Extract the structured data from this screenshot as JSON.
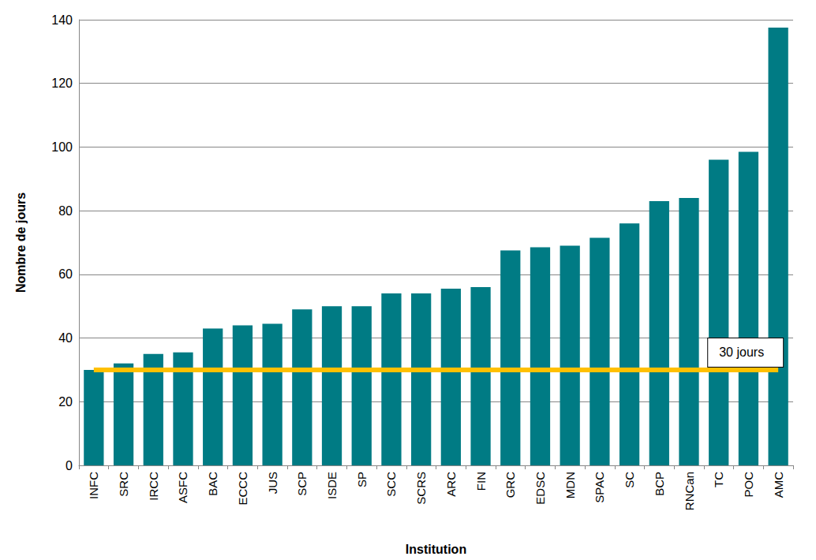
{
  "chart_data": {
    "type": "bar",
    "x_label": "Institution",
    "y_label": "Nombre de jours",
    "categories": [
      "INFC",
      "SRC",
      "IRCC",
      "ASFC",
      "BAC",
      "ECCC",
      "JUS",
      "SCP",
      "ISDE",
      "SP",
      "SCC",
      "SCRS",
      "ARC",
      "FIN",
      "GRC",
      "EDSC",
      "MDN",
      "SPAC",
      "SC",
      "BCP",
      "RNCan",
      "TC",
      "POC",
      "AMC"
    ],
    "values": [
      30,
      32,
      35,
      35.5,
      43,
      44,
      44.5,
      49,
      50,
      50,
      54,
      54,
      55.5,
      56,
      67.5,
      68.5,
      69,
      71.5,
      76,
      83,
      84,
      96,
      98.5,
      137.5
    ],
    "color": "#007b84",
    "ylim": [
      0,
      140
    ],
    "yticks": [
      0,
      20,
      40,
      60,
      80,
      100,
      120,
      140
    ],
    "grid": true,
    "reference_line": {
      "value": 30,
      "label": "30 jours",
      "color": "#ffc000"
    }
  }
}
